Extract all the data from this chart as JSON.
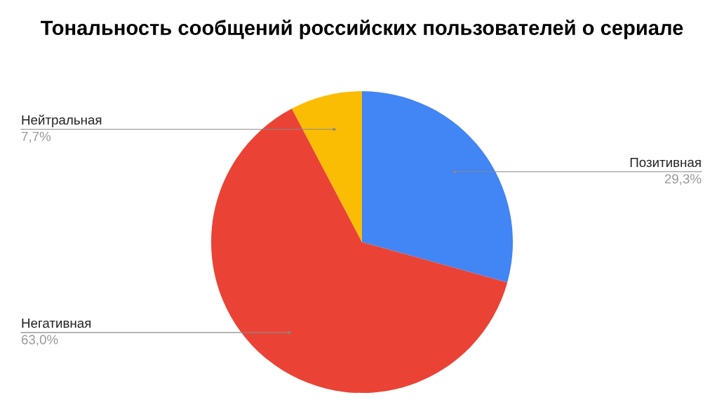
{
  "chart_data": {
    "type": "pie",
    "title": "Тональность сообщений российских пользователей о сериале",
    "categories": [
      "Позитивная",
      "Негативная",
      "Нейтральная"
    ],
    "values": [
      29.3,
      63.0,
      7.7
    ],
    "colors": [
      "#4285f4",
      "#ea4335",
      "#fbbc04"
    ],
    "value_labels": [
      "29,3%",
      "63,0%",
      "7,7%"
    ],
    "legend": false
  }
}
